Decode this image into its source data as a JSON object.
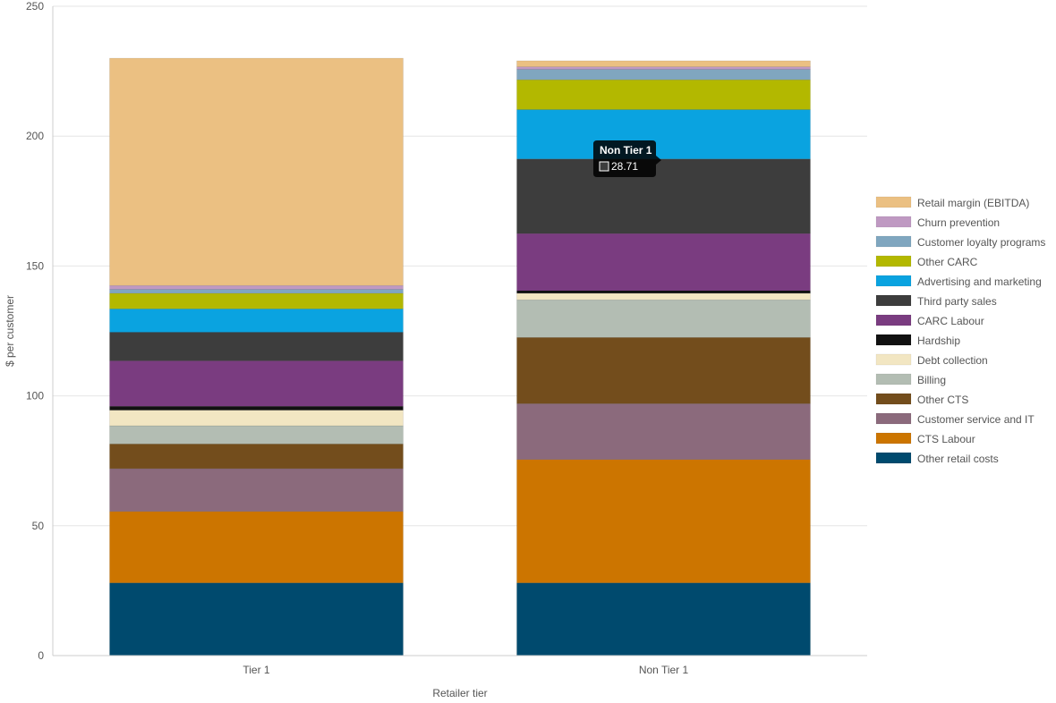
{
  "chart_data": {
    "type": "bar",
    "stacked": true,
    "xlabel": "Retailer tier",
    "ylabel": "$ per customer",
    "ylim": [
      0,
      250
    ],
    "yticks": [
      0,
      50,
      100,
      150,
      200,
      250
    ],
    "grid": true,
    "legend_position": "right",
    "categories": [
      "Tier 1",
      "Non Tier 1"
    ],
    "series": [
      {
        "name": "Other retail costs",
        "color": "#004a6e",
        "values": [
          28,
          28
        ]
      },
      {
        "name": "CTS Labour",
        "color": "#cc7500",
        "values": [
          27.5,
          47.5
        ]
      },
      {
        "name": "Customer service and IT",
        "color": "#8b6a7c",
        "values": [
          16.5,
          21.5
        ]
      },
      {
        "name": "Other CTS",
        "color": "#734d1c",
        "values": [
          9.5,
          25.5
        ]
      },
      {
        "name": "Billing",
        "color": "#b3bdb3",
        "values": [
          7,
          14.5
        ]
      },
      {
        "name": "Debt collection",
        "color": "#f2e6c2",
        "values": [
          6,
          2.5
        ]
      },
      {
        "name": "Hardship",
        "color": "#111111",
        "values": [
          1.5,
          1
        ]
      },
      {
        "name": "CARC Labour",
        "color": "#7a3c80",
        "values": [
          17.5,
          22
        ]
      },
      {
        "name": "Third party sales",
        "color": "#3d3d3d",
        "values": [
          11,
          28.71
        ]
      },
      {
        "name": "Advertising and marketing",
        "color": "#0aa3e0",
        "values": [
          9,
          19
        ]
      },
      {
        "name": "Other CARC",
        "color": "#b3b800",
        "values": [
          6,
          11.5
        ]
      },
      {
        "name": "Customer loyalty programs",
        "color": "#80a6bf",
        "values": [
          1.5,
          4
        ]
      },
      {
        "name": "Churn prevention",
        "color": "#bf99c2",
        "values": [
          1.5,
          1
        ]
      },
      {
        "name": "Retail margin (EBITDA)",
        "color": "#ebc082",
        "values": [
          87.5,
          2.3
        ]
      }
    ],
    "tooltip": {
      "category": "Non Tier 1",
      "series": "Third party sales",
      "value": "28.71"
    }
  }
}
